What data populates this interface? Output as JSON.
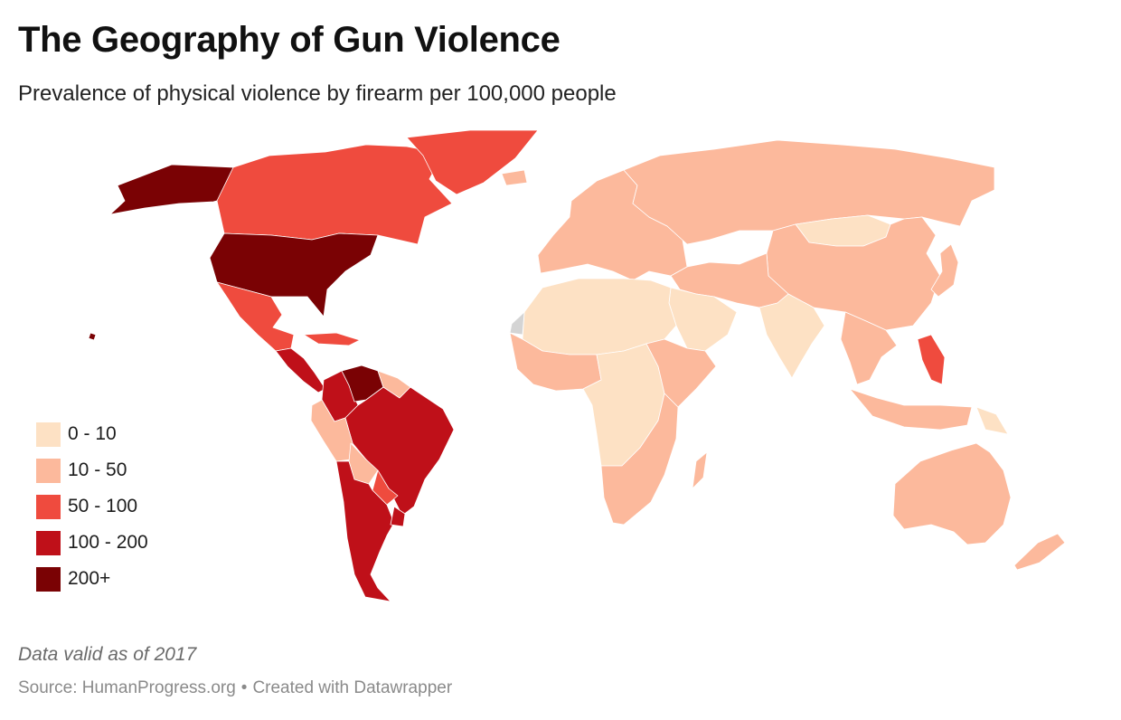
{
  "header": {
    "title": "The Geography of Gun Violence",
    "subtitle": "Prevalence of physical violence by firearm per 100,000 people"
  },
  "legend": {
    "items": [
      {
        "label": "0 - 10",
        "color": "#fde1c4"
      },
      {
        "label": "10 - 50",
        "color": "#fcb99c"
      },
      {
        "label": "50 - 100",
        "color": "#ef4b3e"
      },
      {
        "label": "100 - 200",
        "color": "#bf1019"
      },
      {
        "label": "200+",
        "color": "#7a0204"
      }
    ]
  },
  "map": {
    "no_data_color": "#d4d4d4",
    "border_color": "#ffffff",
    "regions": [
      {
        "name": "Alaska",
        "class": "200+"
      },
      {
        "name": "Canada",
        "class": "50 - 100"
      },
      {
        "name": "Greenland",
        "class": "50 - 100"
      },
      {
        "name": "United States",
        "class": "200+"
      },
      {
        "name": "Mexico",
        "class": "50 - 100"
      },
      {
        "name": "Central America",
        "class": "100 - 200"
      },
      {
        "name": "Caribbean",
        "class": "50 - 100"
      },
      {
        "name": "Venezuela",
        "class": "200+"
      },
      {
        "name": "Colombia",
        "class": "100 - 200"
      },
      {
        "name": "Guianas",
        "class": "10 - 50"
      },
      {
        "name": "Brazil",
        "class": "100 - 200"
      },
      {
        "name": "Peru / Ecuador",
        "class": "10 - 50"
      },
      {
        "name": "Bolivia",
        "class": "10 - 50"
      },
      {
        "name": "Paraguay",
        "class": "50 - 100"
      },
      {
        "name": "Argentina / Chile",
        "class": "100 - 200"
      },
      {
        "name": "Uruguay",
        "class": "100 - 200"
      },
      {
        "name": "Iceland",
        "class": "10 - 50"
      },
      {
        "name": "Europe",
        "class": "10 - 50"
      },
      {
        "name": "Russia",
        "class": "10 - 50"
      },
      {
        "name": "Mongolia",
        "class": "0 - 10"
      },
      {
        "name": "China",
        "class": "10 - 50"
      },
      {
        "name": "Japan",
        "class": "10 - 50"
      },
      {
        "name": "Middle East",
        "class": "10 - 50"
      },
      {
        "name": "Arabian Peninsula",
        "class": "0 - 10"
      },
      {
        "name": "North Africa",
        "class": "0 - 10"
      },
      {
        "name": "Western Sahara",
        "class": "no data"
      },
      {
        "name": "West Africa",
        "class": "10 - 50"
      },
      {
        "name": "Central Africa",
        "class": "0 - 10"
      },
      {
        "name": "East Africa",
        "class": "10 - 50"
      },
      {
        "name": "Southern Africa",
        "class": "10 - 50"
      },
      {
        "name": "Madagascar",
        "class": "10 - 50"
      },
      {
        "name": "India",
        "class": "0 - 10"
      },
      {
        "name": "Southeast Asia",
        "class": "10 - 50"
      },
      {
        "name": "Philippines",
        "class": "50 - 100"
      },
      {
        "name": "Indonesia",
        "class": "10 - 50"
      },
      {
        "name": "Papua New Guinea",
        "class": "0 - 10"
      },
      {
        "name": "Australia",
        "class": "10 - 50"
      },
      {
        "name": "New Zealand",
        "class": "10 - 50"
      },
      {
        "name": "Hawaii",
        "class": "200+"
      }
    ]
  },
  "notes": "Data valid as of 2017",
  "footer": {
    "source": "Source: HumanProgress.org",
    "separator": "•",
    "credit": "Created with Datawrapper"
  }
}
